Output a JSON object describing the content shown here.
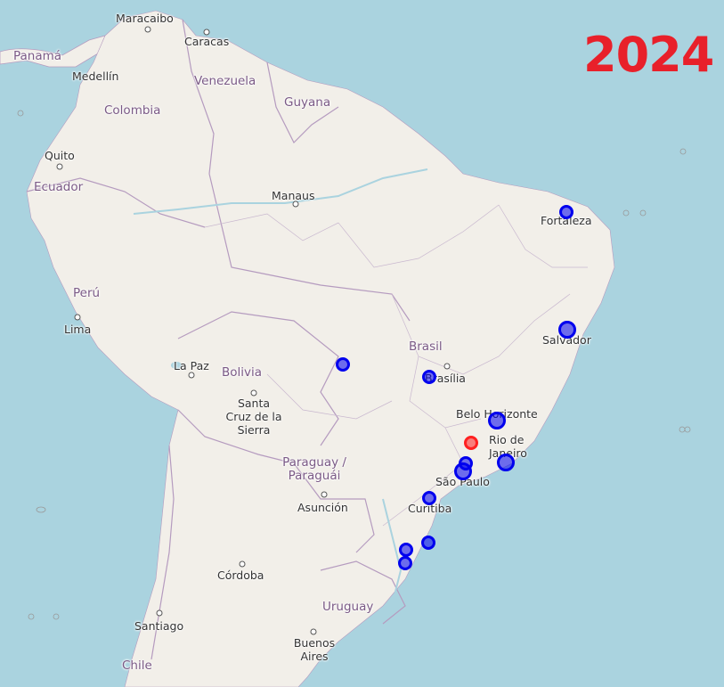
{
  "map": {
    "year_label": "2024",
    "colors": {
      "ocean": "#aad3df",
      "land": "#f2efe9",
      "border": "#b59bbf",
      "river": "#aad3df",
      "marker_blue": "#0000ee",
      "marker_red": "#ff2020",
      "year": "#e8202a"
    },
    "countries": [
      {
        "id": "panama",
        "name": "Panamá"
      },
      {
        "id": "venezuela",
        "name": "Venezuela"
      },
      {
        "id": "colombia",
        "name": "Colombia"
      },
      {
        "id": "guyana",
        "name": "Guyana"
      },
      {
        "id": "ecuador",
        "name": "Ecuador"
      },
      {
        "id": "peru",
        "name": "Perú"
      },
      {
        "id": "brasil",
        "name": "Brasil"
      },
      {
        "id": "bolivia",
        "name": "Bolivia"
      },
      {
        "id": "paraguay",
        "name": "Paraguay / Paraguái"
      },
      {
        "id": "uruguay",
        "name": "Uruguay"
      },
      {
        "id": "chile",
        "name": "Chile"
      }
    ],
    "cities": [
      {
        "id": "maracaibo",
        "name": "Maracaibo"
      },
      {
        "id": "caracas",
        "name": "Caracas"
      },
      {
        "id": "medellin",
        "name": "Medellín"
      },
      {
        "id": "quito",
        "name": "Quito"
      },
      {
        "id": "manaus",
        "name": "Manaus"
      },
      {
        "id": "fortaleza",
        "name": "Fortaleza"
      },
      {
        "id": "lima",
        "name": "Lima"
      },
      {
        "id": "salvador",
        "name": "Salvador"
      },
      {
        "id": "la_paz",
        "name": "La Paz"
      },
      {
        "id": "brasilia",
        "name": "Brasília"
      },
      {
        "id": "santa_cruz",
        "name": "Santa Cruz de la Sierra"
      },
      {
        "id": "belo_horizonte",
        "name": "Belo Horizonte"
      },
      {
        "id": "rio",
        "name": "Rio de Janeiro"
      },
      {
        "id": "sao_paulo",
        "name": "São Paulo"
      },
      {
        "id": "asuncion",
        "name": "Asunción"
      },
      {
        "id": "curitiba",
        "name": "Curitiba"
      },
      {
        "id": "cordoba",
        "name": "Córdoba"
      },
      {
        "id": "santiago",
        "name": "Santiago"
      },
      {
        "id": "buenos_aires",
        "name": "Buenos Aires"
      }
    ],
    "markers": [
      {
        "id": "fortaleza",
        "color": "blue"
      },
      {
        "id": "salvador",
        "color": "blue"
      },
      {
        "id": "mato-grosso",
        "color": "blue"
      },
      {
        "id": "brasilia",
        "color": "blue"
      },
      {
        "id": "belo-horizonte",
        "color": "blue"
      },
      {
        "id": "rio-red",
        "color": "red"
      },
      {
        "id": "rio-de-janeiro",
        "color": "blue"
      },
      {
        "id": "sao-paulo-a",
        "color": "blue"
      },
      {
        "id": "sao-paulo-b",
        "color": "blue"
      },
      {
        "id": "curitiba",
        "color": "blue"
      },
      {
        "id": "santa-catarina",
        "color": "blue"
      },
      {
        "id": "rio-grande-do-sul-a",
        "color": "blue"
      },
      {
        "id": "rio-grande-do-sul-b",
        "color": "blue"
      }
    ]
  }
}
